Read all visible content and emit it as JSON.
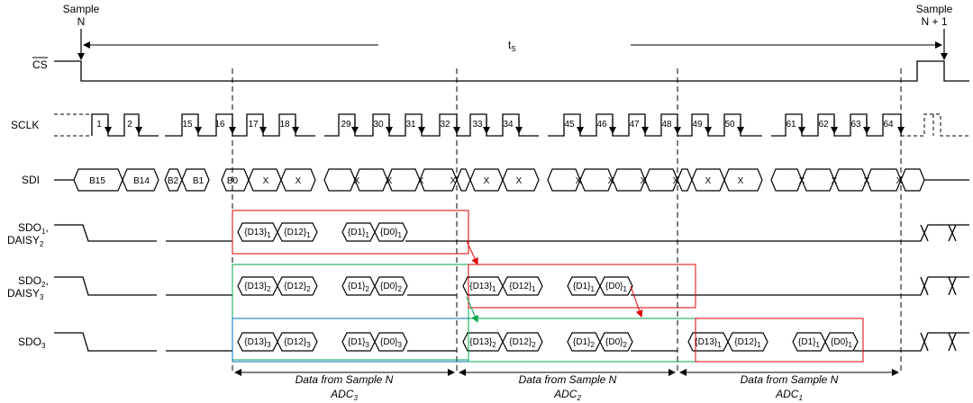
{
  "header": {
    "sample_n": "Sample",
    "sample_n_sub": "N",
    "sample_n1": "Sample",
    "sample_n1_sub": "N + 1",
    "ts_label": "t",
    "ts_sub": "S"
  },
  "signals": {
    "cs": "CS",
    "sclk": "SCLK",
    "sdi": "SDI",
    "sdo1_a": "SDO",
    "sdo1_a_sub": "1",
    "sdo1_b": "DAISY",
    "sdo1_b_sub": "2",
    "sdo2_a": "SDO",
    "sdo2_a_sub": "2",
    "sdo2_b": "DAISY",
    "sdo2_b_sub": "3",
    "sdo3_a": "SDO",
    "sdo3_a_sub": "3"
  },
  "sclk_numbers": [
    "1",
    "2",
    "15",
    "16",
    "17",
    "18",
    "29",
    "30",
    "31",
    "32",
    "33",
    "34",
    "45",
    "46",
    "47",
    "48",
    "49",
    "50",
    "61",
    "62",
    "63",
    "64"
  ],
  "sdi_values": [
    "B15",
    "B14",
    "B2",
    "B1",
    "B0",
    "X",
    "X",
    "X",
    "X",
    "X",
    "X",
    "X",
    "X",
    "X",
    "X",
    "X",
    "X",
    "X",
    "X",
    "X",
    "X",
    "X",
    "X",
    "X",
    "X"
  ],
  "sdo_labels": {
    "sdo1": [
      "{D13}1",
      "{D12}1",
      "{D1}1",
      "{D0}1"
    ],
    "sdo2_group1": [
      "{D13}2",
      "{D12}2",
      "{D1}2",
      "{D0}2"
    ],
    "sdo2_group2": [
      "{D13}1",
      "{D12}1",
      "{D1}1",
      "{D0}1"
    ],
    "sdo3_group1": [
      "{D13}3",
      "{D12}3",
      "{D1}3",
      "{D0}3"
    ],
    "sdo3_group2": [
      "{D13}2",
      "{D12}2",
      "{D1}2",
      "{D0}2"
    ],
    "sdo3_group3": [
      "{D13}1",
      "{D12}1",
      "{D1}1",
      "{D0}1"
    ]
  },
  "footer": [
    {
      "line1": "Data from Sample N",
      "line2": "ADC",
      "sub": "3"
    },
    {
      "line1": "Data from Sample N",
      "line2": "ADC",
      "sub": "2"
    },
    {
      "line1": "Data from Sample N",
      "line2": "ADC",
      "sub": "1"
    }
  ],
  "colors": {
    "red": "#e00000",
    "green": "#00a651",
    "blue": "#0070c0"
  }
}
